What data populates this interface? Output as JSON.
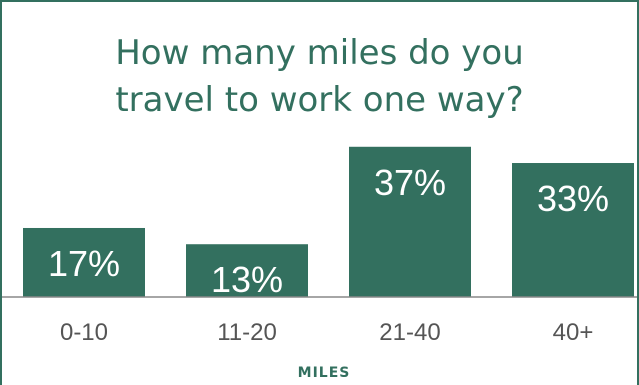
{
  "chart_data": {
    "type": "bar",
    "title": "How many miles do you\ntravel to work one way?",
    "xlabel": "MILES",
    "ylabel": "",
    "categories": [
      "0-10",
      "11-20",
      "21-40",
      "40+"
    ],
    "values": [
      17,
      13,
      37,
      33
    ],
    "value_labels": [
      "17%",
      "13%",
      "37%",
      "33%"
    ],
    "ylim": [
      0,
      40
    ],
    "grid": false,
    "legend": "none",
    "colors": {
      "bar": "#33705f",
      "title": "#33705f",
      "axis_line": "#888888",
      "tick_text": "#555555"
    }
  }
}
